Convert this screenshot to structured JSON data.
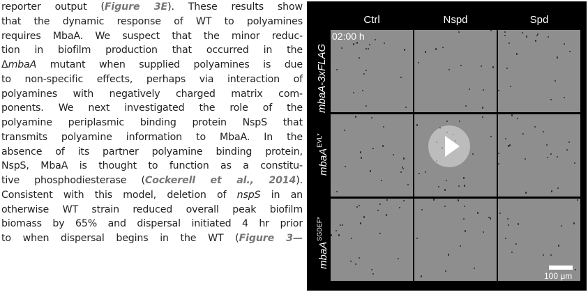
{
  "body_text": {
    "l1": {
      "pre": "reporter output (",
      "ref": "Figure 3E",
      "post": "). These results show"
    },
    "l2": "that the dynamic response of WT to polyamines",
    "l3": "requires MbaA. We suspect that the minor reduc-",
    "l4": "tion in biofilm production that occurred in the",
    "l5": {
      "pre": "Δ",
      "gene": "mbaA",
      "post": " mutant when supplied polyamines is due"
    },
    "l6": "to non-specific effects, perhaps via interaction of",
    "l7": "polyamines with negatively charged matrix com-",
    "l8": "ponents. We next investigated the role of the",
    "l9": "polyamine periplasmic binding protein NspS that",
    "l10": "transmits polyamine information to MbaA. In the",
    "l11": "absence of its partner polyamine binding protein,",
    "l12": "NspS, MbaA is thought to function as a constitu-",
    "l13": {
      "pre": "tive phosphodiesterase (",
      "ref": "Cockerell et al., 2014",
      "post": ")."
    },
    "l14": {
      "pre": "Consistent with this model, deletion of ",
      "gene": "nspS",
      "post": " in an"
    },
    "l15": "otherwise WT strain reduced overall peak biofilm",
    "l16": "biomass by 65% and dispersal initiated 4 hr prior",
    "l17": {
      "pre": "to when dispersal begins in the WT (",
      "ref": "Figure 3—"
    }
  },
  "video": {
    "columns": [
      "Ctrl",
      "Nspd",
      "Spd"
    ],
    "rows": [
      {
        "base": "mbaA-3xFLAG",
        "sup": ""
      },
      {
        "base": "mbaA",
        "sup": "EVL*"
      },
      {
        "base": "mbaA",
        "sup": "SGDEF*"
      }
    ],
    "timestamp": "02:00 h",
    "scale_bar_label": "100 μm",
    "play_icon": "play-icon"
  },
  "colors": {
    "reference_link": "#777777",
    "panel_background": "#8e8e8e",
    "video_background": "#000000"
  }
}
